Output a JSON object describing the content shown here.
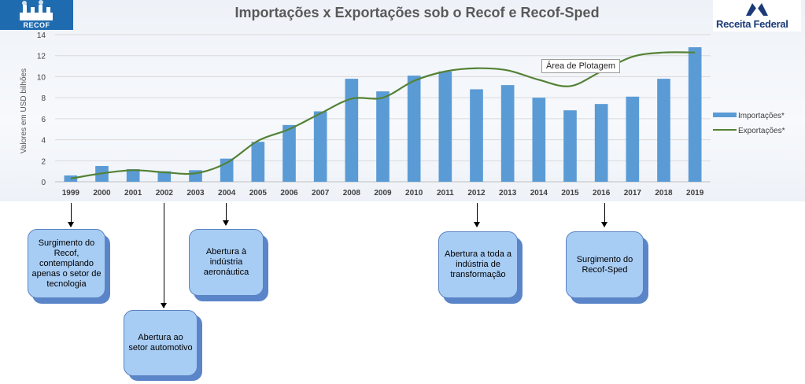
{
  "title": "Importações x Exportações sob o Recof e Recof-Sped",
  "logo_left": {
    "text": "RECOF"
  },
  "logo_right": {
    "text": "Receita Federal"
  },
  "tooltip": "Área de Plotagem",
  "colors": {
    "bars": "#5b9bd5",
    "line": "#548235",
    "boxes": "#a8cdf5"
  },
  "chart_data": {
    "type": "bar",
    "categories": [
      "1999",
      "2000",
      "2001",
      "2002",
      "2003",
      "2004",
      "2005",
      "2006",
      "2007",
      "2008",
      "2009",
      "2010",
      "2011",
      "2012",
      "2013",
      "2014",
      "2015",
      "2016",
      "2017",
      "2018",
      "2019"
    ],
    "series": [
      {
        "name": "Importações*",
        "type": "bar",
        "values": [
          0.6,
          1.5,
          1.2,
          1.0,
          1.1,
          2.2,
          3.8,
          5.4,
          6.7,
          9.8,
          8.6,
          10.1,
          10.5,
          8.8,
          9.2,
          8.0,
          6.8,
          7.4,
          8.1,
          9.8,
          12.8
        ]
      },
      {
        "name": "Exportações*",
        "type": "line",
        "values": [
          0.3,
          0.8,
          1.1,
          0.9,
          0.8,
          1.8,
          3.9,
          5.0,
          6.5,
          7.9,
          8.0,
          9.6,
          10.5,
          10.8,
          10.6,
          9.7,
          9.1,
          10.5,
          11.9,
          12.3,
          12.3
        ]
      }
    ],
    "ylabel": "Valores em USD bilhões",
    "xlabel": "",
    "ylim": [
      0,
      14
    ],
    "yticks": [
      0,
      2,
      4,
      6,
      8,
      10,
      12,
      14
    ],
    "grid": true,
    "legend": "right"
  },
  "annotations": [
    {
      "year": "1999",
      "text": "Surgimento do Recof, contemplando apenas o setor de tecnologia"
    },
    {
      "year": "2002",
      "text": "Abertura ao setor automotivo"
    },
    {
      "year": "2004",
      "text": "Abertura à indústria aeronáutica"
    },
    {
      "year": "2012",
      "text": "Abertura a toda a indústria de transformação"
    },
    {
      "year": "2016",
      "text": "Surgimento do Recof-Sped"
    }
  ]
}
